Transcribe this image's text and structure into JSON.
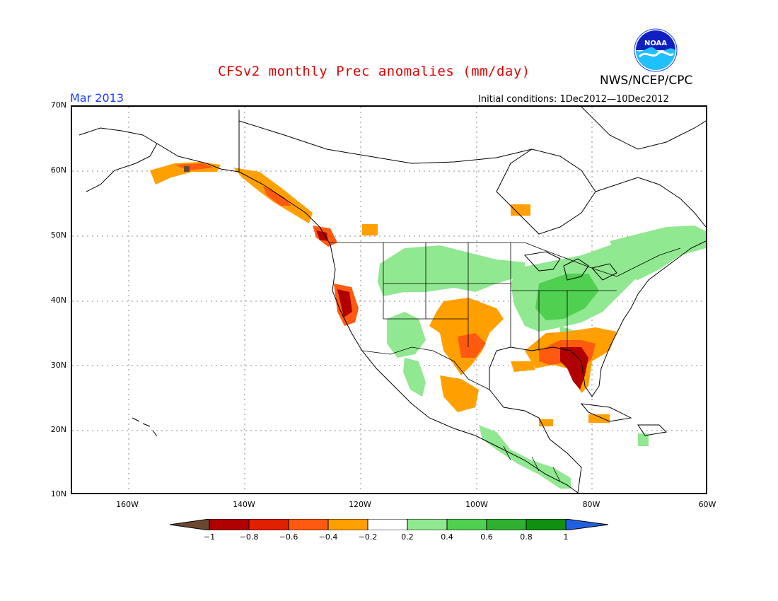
{
  "title": "CFSv2 monthly Prec anomalies (mm/day)",
  "agency": "NWS/NCEP/CPC",
  "logo_text": "NOAA",
  "valid_month": "Mar 2013",
  "initial_conditions": "Initial conditions: 1Dec2012—10Dec2012",
  "lat_labels": [
    "70N",
    "60N",
    "50N",
    "40N",
    "30N",
    "20N",
    "10N"
  ],
  "lon_labels": [
    "160W",
    "140W",
    "120W",
    "100W",
    "80W",
    "60W"
  ],
  "colorbar": {
    "ticks": [
      "−1",
      "−0.8",
      "−0.6",
      "−0.4",
      "−0.2",
      "0.2",
      "0.4",
      "0.6",
      "0.8",
      "1"
    ],
    "colors": [
      "#6b4630",
      "#b00000",
      "#e02000",
      "#ff5a10",
      "#ffa000",
      "#ffffff",
      "#90e890",
      "#50d050",
      "#30b030",
      "#109010",
      "#2060e0"
    ]
  },
  "anomaly_regions": [
    {
      "name": "Southeast US",
      "category": "-0.8"
    },
    {
      "name": "Florida peninsula",
      "category": "-0.8"
    },
    {
      "name": "Northern California coast",
      "category": "-0.8"
    },
    {
      "name": "Southeast Alaska coast",
      "category": "-0.6"
    },
    {
      "name": "Southern Plains / Texas",
      "category": "-0.4"
    },
    {
      "name": "Northern Mexico",
      "category": "-0.4"
    },
    {
      "name": "Ohio Valley / Great Lakes",
      "category": "0.4"
    },
    {
      "name": "Northern Plains",
      "category": "0.2"
    },
    {
      "name": "Northeast US",
      "category": "0.2"
    },
    {
      "name": "Central America",
      "category": "0.2"
    }
  ]
}
